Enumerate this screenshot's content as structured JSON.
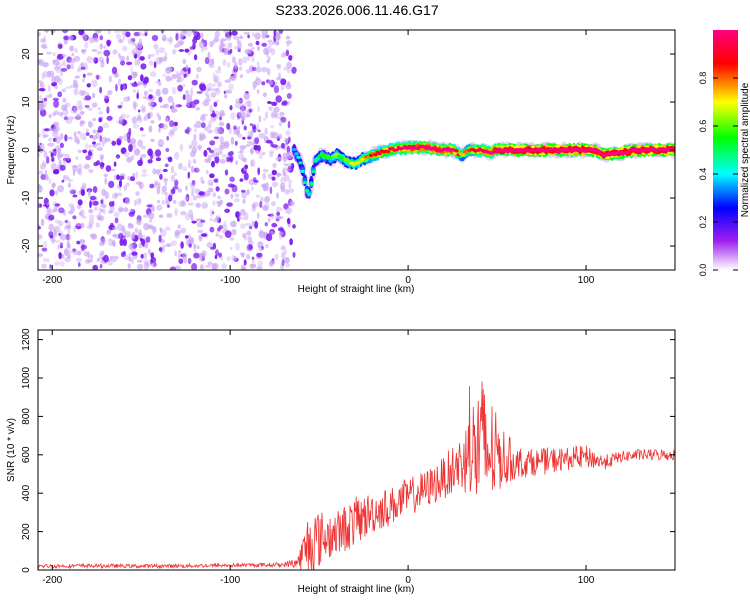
{
  "title": "S233.2026.006.11.46.G17",
  "chart_data": [
    {
      "type": "heatmap",
      "title": "S233.2026.006.11.46.G17",
      "xlabel": "Height of straight line (km)",
      "ylabel": "Frequency (Hz)",
      "xlim": [
        -208,
        150
      ],
      "ylim": [
        -25,
        25
      ],
      "xticks": [
        -200,
        -100,
        0,
        100
      ],
      "yticks": [
        -20,
        -10,
        0,
        10,
        20
      ],
      "grid": false,
      "colorbar": {
        "label": "Normalized spectral amplitude",
        "range": [
          0,
          1
        ],
        "ticks": [
          "0.0",
          "0.2",
          "0.4",
          "0.6",
          "0.8"
        ],
        "colors": [
          "#ffffff",
          "#a020f0",
          "#0000ff",
          "#00ffff",
          "#00ff00",
          "#ffff00",
          "#ff0000",
          "#ff0080"
        ]
      },
      "noise_region_x": [
        -208,
        -64
      ],
      "noise_amplitude": 0.15,
      "signal_ridge": {
        "x": [
          -64,
          -60,
          -56,
          -52,
          -48,
          -44,
          -40,
          -36,
          -30,
          -26,
          -20,
          -10,
          0,
          10,
          20,
          25,
          30,
          35,
          40,
          45,
          50,
          70,
          90,
          105,
          110,
          130,
          150
        ],
        "freq": [
          0,
          -3,
          -10,
          -2,
          -1,
          -2,
          -1,
          -2,
          -3,
          -2,
          -1,
          0,
          0.5,
          0.5,
          0,
          0,
          -1,
          0,
          0,
          -0.5,
          0,
          0,
          0,
          0,
          -1,
          0,
          0
        ],
        "amplitude": [
          0.2,
          0.25,
          0.3,
          0.3,
          0.35,
          0.35,
          0.4,
          0.4,
          0.45,
          0.5,
          0.6,
          0.7,
          0.75,
          0.8,
          0.8,
          0.8,
          0.5,
          0.6,
          0.7,
          0.75,
          0.85,
          0.9,
          0.9,
          0.9,
          0.85,
          0.9,
          0.9
        ]
      }
    },
    {
      "type": "line",
      "xlabel": "Height of straight line (km)",
      "ylabel": "SNR (10 * v/v)",
      "xlim": [
        -208,
        150
      ],
      "ylim": [
        0,
        1250
      ],
      "xticks": [
        -200,
        -100,
        0,
        100
      ],
      "yticks": [
        0,
        200,
        400,
        600,
        800,
        1000,
        1200
      ],
      "grid": false,
      "color": "#ee3333",
      "series": [
        {
          "name": "SNR",
          "x": [
            -208,
            -180,
            -150,
            -120,
            -90,
            -70,
            -62,
            -55,
            -50,
            -45,
            -40,
            -30,
            -20,
            -10,
            0,
            10,
            20,
            30,
            35,
            40,
            45,
            50,
            60,
            70,
            80,
            90,
            100,
            110,
            120,
            130,
            140,
            150
          ],
          "values": [
            20,
            22,
            20,
            22,
            25,
            28,
            40,
            150,
            160,
            180,
            190,
            250,
            300,
            330,
            380,
            420,
            480,
            560,
            600,
            640,
            620,
            600,
            560,
            560,
            570,
            580,
            590,
            560,
            590,
            600,
            600,
            600
          ],
          "spread": [
            10,
            10,
            10,
            10,
            10,
            12,
            30,
            200,
            150,
            130,
            120,
            130,
            110,
            100,
            100,
            100,
            110,
            150,
            250,
            400,
            350,
            200,
            90,
            70,
            70,
            60,
            60,
            40,
            30,
            30,
            30,
            30
          ]
        }
      ]
    }
  ]
}
